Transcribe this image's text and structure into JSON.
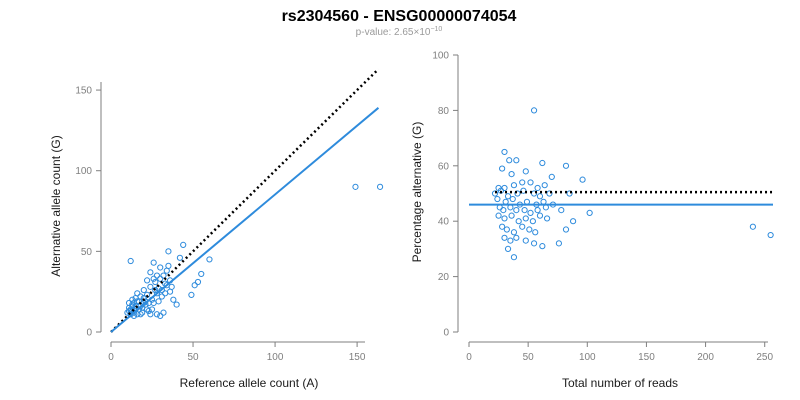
{
  "header": {
    "title": "rs2304560 - ENSG00000074054",
    "pvalue_prefix": "p-value: 2.65×10",
    "pvalue_exponent": "−10"
  },
  "colors": {
    "points": "#2e8bdc",
    "fit_line": "#2e8bdc",
    "reference_line": "#000000",
    "axes": "#7f7f7f"
  },
  "chart_data": [
    {
      "type": "scatter",
      "xlabel": "Reference allele count (A)",
      "ylabel": "Alternative allele count (G)",
      "xlim": [
        0,
        167
      ],
      "ylim": [
        0,
        155
      ],
      "xticks": [
        0,
        50,
        100,
        150
      ],
      "yticks": [
        0,
        50,
        100,
        150
      ],
      "grid": false,
      "fit_line": {
        "x": [
          0,
          163
        ],
        "y": [
          0,
          139
        ]
      },
      "reference_line": {
        "style": "dotted",
        "x": [
          0,
          163
        ],
        "y": [
          0,
          163
        ]
      },
      "points": [
        [
          12,
          44
        ],
        [
          10,
          12
        ],
        [
          11,
          15
        ],
        [
          12,
          13
        ],
        [
          13,
          17
        ],
        [
          14,
          12
        ],
        [
          15,
          14
        ],
        [
          11,
          18
        ],
        [
          13,
          20
        ],
        [
          16,
          11
        ],
        [
          17,
          19
        ],
        [
          18,
          16
        ],
        [
          14,
          10
        ],
        [
          19,
          12
        ],
        [
          20,
          21
        ],
        [
          21,
          17
        ],
        [
          22,
          23
        ],
        [
          23,
          13
        ],
        [
          24,
          28
        ],
        [
          25,
          20
        ],
        [
          26,
          18
        ],
        [
          27,
          31
        ],
        [
          28,
          24
        ],
        [
          29,
          27
        ],
        [
          30,
          33
        ],
        [
          31,
          22
        ],
        [
          32,
          35
        ],
        [
          33,
          30
        ],
        [
          34,
          38
        ],
        [
          35,
          41
        ],
        [
          36,
          32
        ],
        [
          37,
          28
        ],
        [
          38,
          20
        ],
        [
          40,
          17
        ],
        [
          42,
          46
        ],
        [
          44,
          54
        ],
        [
          49,
          23
        ],
        [
          51,
          29
        ],
        [
          53,
          31
        ],
        [
          55,
          36
        ],
        [
          60,
          45
        ],
        [
          35,
          50
        ],
        [
          30,
          40
        ],
        [
          26,
          43
        ],
        [
          24,
          37
        ],
        [
          22,
          32
        ],
        [
          20,
          26
        ],
        [
          18,
          22
        ],
        [
          16,
          19
        ],
        [
          15,
          21
        ],
        [
          13,
          16
        ],
        [
          12,
          11
        ],
        [
          19,
          15
        ],
        [
          23,
          18
        ],
        [
          25,
          14
        ],
        [
          27,
          26
        ],
        [
          29,
          19
        ],
        [
          31,
          26
        ],
        [
          33,
          24
        ],
        [
          34,
          29
        ],
        [
          36,
          25
        ],
        [
          26,
          33
        ],
        [
          28,
          35
        ],
        [
          16,
          24
        ],
        [
          14,
          18
        ],
        [
          18,
          11
        ],
        [
          22,
          14
        ],
        [
          24,
          11
        ],
        [
          28,
          11
        ],
        [
          30,
          10
        ],
        [
          32,
          12
        ],
        [
          21,
          19
        ],
        [
          17,
          14
        ],
        [
          20,
          18
        ],
        [
          15,
          16
        ],
        [
          12,
          14
        ],
        [
          11,
          13
        ],
        [
          13,
          13
        ],
        [
          149,
          90
        ],
        [
          164,
          90
        ]
      ]
    },
    {
      "type": "scatter",
      "xlabel": "Total number of reads",
      "ylabel": "Percentage alternative (G)",
      "xlim": [
        0,
        257
      ],
      "ylim": [
        0,
        100
      ],
      "xticks": [
        0,
        50,
        100,
        150,
        200,
        250
      ],
      "yticks": [
        0,
        20,
        40,
        60,
        80,
        100
      ],
      "grid": false,
      "fit_line": {
        "x": [
          0,
          257
        ],
        "y": [
          46,
          46
        ]
      },
      "reference_line": {
        "style": "dotted",
        "x": [
          22,
          257
        ],
        "y": [
          50.5,
          50.5
        ]
      },
      "points": [
        [
          55,
          80
        ],
        [
          30,
          65
        ],
        [
          34,
          62
        ],
        [
          28,
          59
        ],
        [
          40,
          62
        ],
        [
          62,
          61
        ],
        [
          82,
          60
        ],
        [
          48,
          58
        ],
        [
          36,
          57
        ],
        [
          70,
          56
        ],
        [
          96,
          55
        ],
        [
          25,
          52
        ],
        [
          30,
          52
        ],
        [
          38,
          53
        ],
        [
          45,
          54
        ],
        [
          52,
          54
        ],
        [
          58,
          52
        ],
        [
          64,
          53
        ],
        [
          22,
          50
        ],
        [
          27,
          51
        ],
        [
          33,
          49
        ],
        [
          41,
          50
        ],
        [
          46,
          51
        ],
        [
          55,
          50
        ],
        [
          60,
          49
        ],
        [
          68,
          50
        ],
        [
          85,
          50
        ],
        [
          24,
          48
        ],
        [
          31,
          47
        ],
        [
          37,
          48
        ],
        [
          43,
          46
        ],
        [
          49,
          47
        ],
        [
          57,
          46
        ],
        [
          63,
          47
        ],
        [
          26,
          45
        ],
        [
          29,
          44
        ],
        [
          35,
          45
        ],
        [
          40,
          44
        ],
        [
          47,
          44
        ],
        [
          52,
          43
        ],
        [
          58,
          44
        ],
        [
          65,
          45
        ],
        [
          71,
          46
        ],
        [
          78,
          44
        ],
        [
          25,
          42
        ],
        [
          30,
          41
        ],
        [
          36,
          42
        ],
        [
          42,
          40
        ],
        [
          48,
          41
        ],
        [
          54,
          40
        ],
        [
          60,
          42
        ],
        [
          66,
          41
        ],
        [
          28,
          38
        ],
        [
          32,
          37
        ],
        [
          38,
          36
        ],
        [
          45,
          38
        ],
        [
          51,
          37
        ],
        [
          56,
          36
        ],
        [
          82,
          37
        ],
        [
          88,
          40
        ],
        [
          102,
          43
        ],
        [
          30,
          34
        ],
        [
          35,
          33
        ],
        [
          40,
          34
        ],
        [
          33,
          30
        ],
        [
          38,
          27
        ],
        [
          48,
          33
        ],
        [
          55,
          32
        ],
        [
          62,
          31
        ],
        [
          76,
          32
        ],
        [
          240,
          38
        ],
        [
          255,
          35
        ]
      ]
    }
  ]
}
